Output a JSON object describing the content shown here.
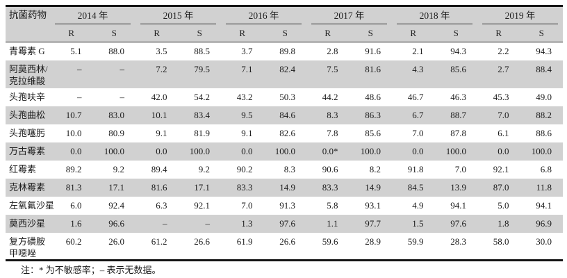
{
  "table": {
    "corner_header": "抗菌药物",
    "years": [
      "2014 年",
      "2015 年",
      "2016 年",
      "2017 年",
      "2018 年",
      "2019 年"
    ],
    "sub_headers": [
      "R",
      "S"
    ],
    "rows": [
      {
        "name_lines": [
          "青霉素 G"
        ],
        "shaded": false,
        "values": [
          "5.1",
          "88.0",
          "3.5",
          "88.5",
          "3.7",
          "89.8",
          "2.8",
          "91.6",
          "2.1",
          "94.3",
          "2.2",
          "94.3"
        ]
      },
      {
        "name_lines": [
          "阿莫西林/",
          "克拉维酸"
        ],
        "shaded": true,
        "values": [
          "–",
          "–",
          "7.2",
          "79.5",
          "7.1",
          "82.4",
          "7.5",
          "81.6",
          "4.3",
          "85.6",
          "2.7",
          "88.4"
        ]
      },
      {
        "name_lines": [
          "头孢呋辛"
        ],
        "shaded": false,
        "values": [
          "–",
          "–",
          "42.0",
          "54.2",
          "43.2",
          "50.3",
          "44.2",
          "48.6",
          "46.7",
          "46.3",
          "45.3",
          "49.0"
        ]
      },
      {
        "name_lines": [
          "头孢曲松"
        ],
        "shaded": true,
        "values": [
          "10.7",
          "83.0",
          "10.1",
          "83.4",
          "9.5",
          "84.6",
          "8.3",
          "86.3",
          "6.7",
          "88.7",
          "7.0",
          "88.2"
        ]
      },
      {
        "name_lines": [
          "头孢噻肟"
        ],
        "shaded": false,
        "values": [
          "10.0",
          "80.9",
          "9.1",
          "81.9",
          "9.1",
          "82.6",
          "7.8",
          "85.6",
          "7.0",
          "87.8",
          "6.1",
          "88.6"
        ]
      },
      {
        "name_lines": [
          "万古霉素"
        ],
        "shaded": true,
        "values": [
          "0.0",
          "100.0",
          "0.0",
          "100.0",
          "0.0",
          "100.0",
          "0.0*",
          "100.0",
          "0.0",
          "100.0",
          "0.0",
          "100.0"
        ]
      },
      {
        "name_lines": [
          "红霉素"
        ],
        "shaded": false,
        "values": [
          "89.2",
          "9.2",
          "89.4",
          "9.2",
          "90.2",
          "8.3",
          "90.6",
          "8.2",
          "91.8",
          "7.0",
          "92.1",
          "6.8"
        ]
      },
      {
        "name_lines": [
          "克林霉素"
        ],
        "shaded": true,
        "values": [
          "81.3",
          "17.1",
          "81.6",
          "17.1",
          "83.3",
          "14.9",
          "83.3",
          "14.9",
          "84.5",
          "13.9",
          "87.0",
          "11.8"
        ]
      },
      {
        "name_lines": [
          "左氧氟沙星"
        ],
        "shaded": false,
        "values": [
          "6.0",
          "92.4",
          "6.3",
          "92.1",
          "7.0",
          "91.3",
          "5.8",
          "93.1",
          "4.9",
          "94.1",
          "5.0",
          "94.1"
        ]
      },
      {
        "name_lines": [
          "莫西沙星"
        ],
        "shaded": true,
        "values": [
          "1.6",
          "96.6",
          "–",
          "–",
          "1.3",
          "97.6",
          "1.1",
          "97.7",
          "1.5",
          "97.6",
          "1.8",
          "96.9"
        ]
      },
      {
        "name_lines": [
          "复方磺胺",
          "甲噁唑"
        ],
        "shaded": false,
        "values": [
          "60.2",
          "26.0",
          "61.2",
          "26.6",
          "61.9",
          "26.6",
          "59.6",
          "28.9",
          "59.9",
          "28.3",
          "58.0",
          "30.0"
        ]
      }
    ],
    "note": "注：* 为不敏感率；– 表示无数据。",
    "colors": {
      "shade": "#d1d1d1",
      "rule": "#141414",
      "text": "#1c1c1c"
    }
  }
}
